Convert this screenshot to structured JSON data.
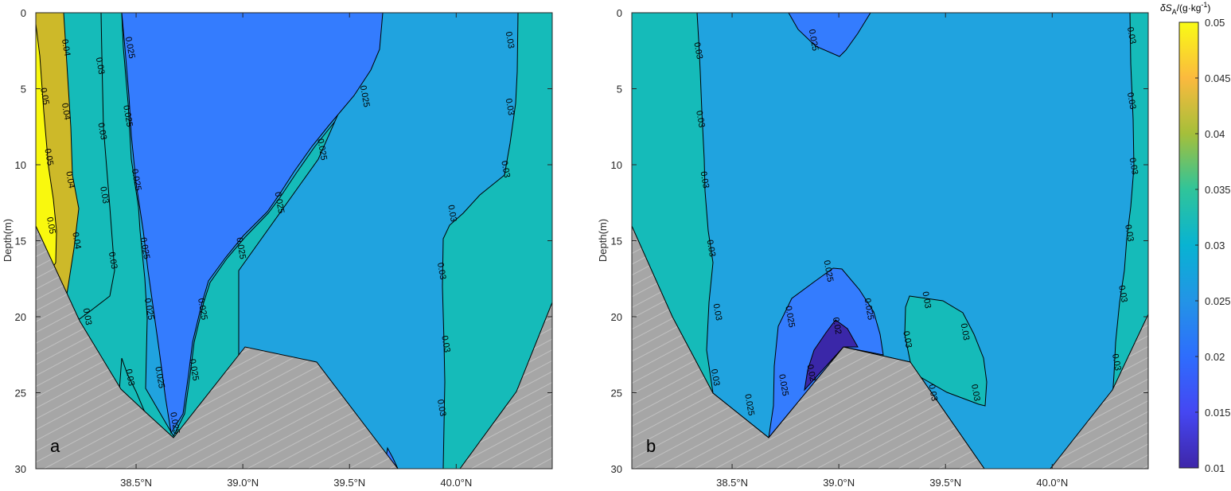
{
  "figure": {
    "colors": {
      "c005": "#F9F80E",
      "c004": "#CDB929",
      "c003": "#15BBB9",
      "c0025": "#20A3DF",
      "c002": "#347CFE",
      "c0015": "#3E5BF0",
      "c001": "#3A27A8",
      "seabed": "#A6A6A6",
      "hatch": "#C8C8C8"
    }
  },
  "chart_data": [
    {
      "type": "contour",
      "panel_label": "a",
      "xlabel": "",
      "ylabel": "Depth(m)",
      "xlim": [
        38.03,
        40.45
      ],
      "ylim": [
        30,
        0
      ],
      "xticks": [
        38.5,
        39.0,
        39.5,
        40.0
      ],
      "xtick_labels": [
        "38.5°N",
        "39.0°N",
        "39.5°N",
        "40.0°N"
      ],
      "yticks": [
        0,
        5,
        10,
        15,
        20,
        25,
        30
      ],
      "ytick_labels": [
        "0",
        "5",
        "10",
        "15",
        "20",
        "25",
        "30"
      ],
      "levels": [
        0.025,
        0.03,
        0.04,
        0.05
      ],
      "contour_labels": [
        {
          "text": "0.04",
          "x": 38.17,
          "y": 2.3
        },
        {
          "text": "0.04",
          "x": 38.17,
          "y": 6.5
        },
        {
          "text": "0.04",
          "x": 38.19,
          "y": 11.0
        },
        {
          "text": "0.04",
          "x": 38.22,
          "y": 15.0
        },
        {
          "text": "0.05",
          "x": 38.07,
          "y": 5.5
        },
        {
          "text": "0.05",
          "x": 38.09,
          "y": 9.5
        },
        {
          "text": "0.05",
          "x": 38.1,
          "y": 14.0
        },
        {
          "text": "0.03",
          "x": 38.33,
          "y": 3.5
        },
        {
          "text": "0.03",
          "x": 38.34,
          "y": 7.8
        },
        {
          "text": "0.03",
          "x": 38.35,
          "y": 12.0
        },
        {
          "text": "0.03",
          "x": 38.39,
          "y": 16.3
        },
        {
          "text": "0.03",
          "x": 38.27,
          "y": 20.0
        },
        {
          "text": "0.03",
          "x": 38.47,
          "y": 24.0
        },
        {
          "text": "0.025",
          "x": 38.47,
          "y": 2.3
        },
        {
          "text": "0.025",
          "x": 38.46,
          "y": 6.8
        },
        {
          "text": "0.025",
          "x": 38.5,
          "y": 11.0
        },
        {
          "text": "0.025",
          "x": 38.54,
          "y": 15.5
        },
        {
          "text": "0.025",
          "x": 38.56,
          "y": 19.5
        },
        {
          "text": "0.025",
          "x": 38.61,
          "y": 24.0
        },
        {
          "text": "0.025",
          "x": 38.68,
          "y": 27.0
        },
        {
          "text": "0.025",
          "x": 38.77,
          "y": 23.5
        },
        {
          "text": "0.025",
          "x": 38.81,
          "y": 19.5
        },
        {
          "text": "0.025",
          "x": 38.99,
          "y": 15.5
        },
        {
          "text": "0.025",
          "x": 39.17,
          "y": 12.5
        },
        {
          "text": "0.025",
          "x": 39.37,
          "y": 9.0
        },
        {
          "text": "0.025",
          "x": 39.57,
          "y": 5.5
        },
        {
          "text": "0.03",
          "x": 40.25,
          "y": 1.8
        },
        {
          "text": "0.03",
          "x": 40.25,
          "y": 6.2
        },
        {
          "text": "0.03",
          "x": 40.23,
          "y": 10.3
        },
        {
          "text": "0.03",
          "x": 39.98,
          "y": 13.2
        },
        {
          "text": "0.03",
          "x": 39.93,
          "y": 17.0
        },
        {
          "text": "0.03",
          "x": 39.95,
          "y": 21.8
        },
        {
          "text": "0.03",
          "x": 39.93,
          "y": 26.0
        }
      ]
    },
    {
      "type": "contour",
      "panel_label": "b",
      "xlabel": "",
      "ylabel": "Depth(m)",
      "xlim": [
        38.03,
        40.45
      ],
      "ylim": [
        30,
        0
      ],
      "xticks": [
        38.5,
        39.0,
        39.5,
        40.0
      ],
      "xtick_labels": [
        "38.5°N",
        "39.0°N",
        "39.5°N",
        "40.0°N"
      ],
      "yticks": [
        0,
        5,
        10,
        15,
        20,
        25,
        30
      ],
      "ytick_labels": [
        "0",
        "5",
        "10",
        "15",
        "20",
        "25",
        "30"
      ],
      "levels": [
        0.02,
        0.025,
        0.03
      ],
      "contour_labels": [
        {
          "text": "0.025",
          "x": 38.88,
          "y": 1.8
        },
        {
          "text": "0.03",
          "x": 38.34,
          "y": 2.5
        },
        {
          "text": "0.03",
          "x": 38.35,
          "y": 7.0
        },
        {
          "text": "0.03",
          "x": 38.37,
          "y": 11.0
        },
        {
          "text": "0.03",
          "x": 38.4,
          "y": 15.5
        },
        {
          "text": "0.03",
          "x": 38.43,
          "y": 19.7
        },
        {
          "text": "0.03",
          "x": 38.42,
          "y": 24.0
        },
        {
          "text": "0.025",
          "x": 38.58,
          "y": 25.8
        },
        {
          "text": "0.025",
          "x": 38.74,
          "y": 24.5
        },
        {
          "text": "0.025",
          "x": 38.77,
          "y": 20.0
        },
        {
          "text": "0.025",
          "x": 38.95,
          "y": 17.0
        },
        {
          "text": "0.025",
          "x": 39.14,
          "y": 19.5
        },
        {
          "text": "0.02",
          "x": 38.99,
          "y": 20.6
        },
        {
          "text": "0.02",
          "x": 38.87,
          "y": 23.7
        },
        {
          "text": "0.03",
          "x": 39.41,
          "y": 18.9
        },
        {
          "text": "0.03",
          "x": 39.32,
          "y": 21.5
        },
        {
          "text": "0.03",
          "x": 39.59,
          "y": 21.0
        },
        {
          "text": "0.03",
          "x": 39.64,
          "y": 25.0
        },
        {
          "text": "0.03",
          "x": 39.44,
          "y": 25.0
        },
        {
          "text": "0.03",
          "x": 40.37,
          "y": 1.5
        },
        {
          "text": "0.03",
          "x": 40.37,
          "y": 5.8
        },
        {
          "text": "0.03",
          "x": 40.38,
          "y": 10.1
        },
        {
          "text": "0.03",
          "x": 40.36,
          "y": 14.5
        },
        {
          "text": "0.03",
          "x": 40.33,
          "y": 18.5
        },
        {
          "text": "0.03",
          "x": 40.3,
          "y": 23.0
        }
      ]
    },
    {
      "type": "colorbar",
      "title": "δS",
      "title_sub": "A",
      "title_units": "/(g·kg",
      "title_sup": "-1",
      "title_close": ")",
      "range": [
        0.01,
        0.05
      ],
      "ticks": [
        0.01,
        0.015,
        0.02,
        0.025,
        0.03,
        0.035,
        0.04,
        0.045,
        0.05
      ],
      "tick_labels": [
        "0.01",
        "0.015",
        "0.02",
        "0.025",
        "0.03",
        "0.035",
        "0.04",
        "0.045",
        "0.05"
      ]
    }
  ]
}
